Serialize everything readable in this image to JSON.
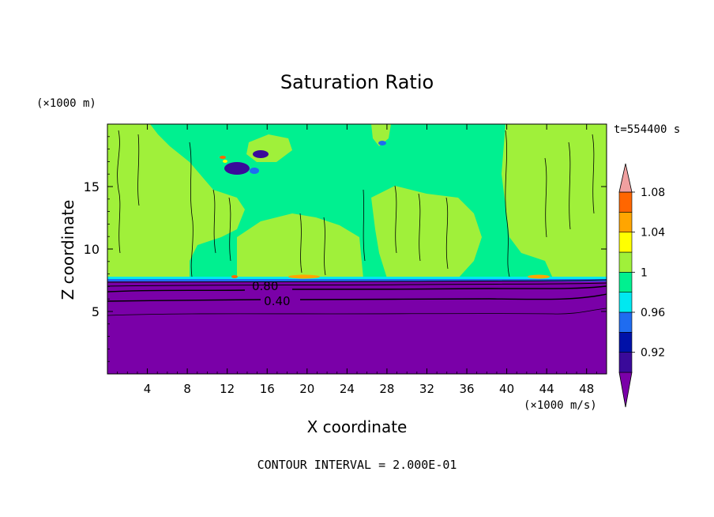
{
  "chart_data": {
    "type": "heatmap",
    "title": "Saturation Ratio",
    "xlabel": "X coordinate",
    "ylabel": "Z coordinate",
    "x_unit": "(×1000 m/s)",
    "y_unit": "(×1000 m)",
    "time_label": "t=554400 s",
    "footer": "CONTOUR INTERVAL = 2.000E-01",
    "xlim": [
      0,
      50
    ],
    "ylim": [
      0,
      20
    ],
    "x_ticks": [
      4,
      8,
      12,
      16,
      20,
      24,
      28,
      32,
      36,
      40,
      44,
      48
    ],
    "y_ticks": [
      5,
      10,
      15
    ],
    "contour_labels": [
      {
        "text": "0.80",
        "x": 15.8,
        "y": 7.1
      },
      {
        "text": "0.40",
        "x": 17.0,
        "y": 5.9
      }
    ],
    "colorbar": {
      "ticks": [
        "0.92",
        "0.96",
        "1",
        "1.04",
        "1.08"
      ],
      "colors": [
        "#3a0a9a",
        "#0011a8",
        "#1f6cf0",
        "#00e8f0",
        "#00f090",
        "#a0f03a",
        "#ffff00",
        "#ffa500",
        "#ff6600",
        "#ff2a1a",
        "#f0a0a0"
      ]
    },
    "colors": {
      "deep_purple": "#7a00a8",
      "green_high": "#a0f03a",
      "green_mid": "#00f090",
      "cyan": "#00e8f0",
      "blue": "#1f6cf0"
    }
  }
}
